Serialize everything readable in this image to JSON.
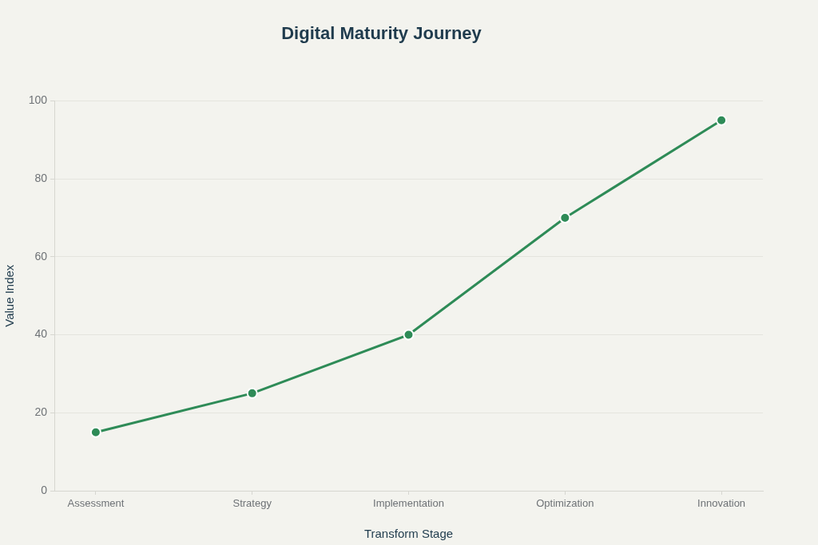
{
  "chart_data": {
    "type": "line",
    "title": "Digital Maturity Journey",
    "xlabel": "Transform Stage",
    "ylabel": "Value Index",
    "categories": [
      "Assessment",
      "Strategy",
      "Implementation",
      "Optimization",
      "Innovation"
    ],
    "values": [
      15,
      25,
      40,
      70,
      95
    ],
    "color": "#2e8b57",
    "ylim": [
      0,
      100
    ],
    "yticks": [
      0,
      20,
      40,
      60,
      80,
      100
    ],
    "grid": "y",
    "marker": "circle",
    "line_style": "solid"
  }
}
